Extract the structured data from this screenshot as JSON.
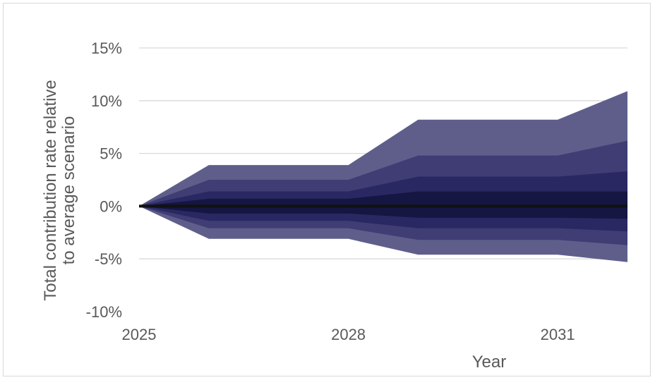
{
  "chart_data": {
    "type": "area",
    "title": "",
    "xlabel": "Year",
    "ylabel_lines": [
      "Total contribution rate relative",
      "to average scenario"
    ],
    "x": [
      2025,
      2026,
      2027,
      2028,
      2029,
      2030,
      2031,
      2032
    ],
    "x_ticks": [
      2025,
      2028,
      2031
    ],
    "x_tick_labels": [
      "2025",
      "2028",
      "2031"
    ],
    "ylim": [
      -10,
      15
    ],
    "y_ticks": [
      -10,
      -5,
      0,
      5,
      10,
      15
    ],
    "y_tick_labels": [
      "-10%",
      "-5%",
      "0%",
      "5%",
      "10%",
      "15%"
    ],
    "grid": true,
    "bands": [
      {
        "upper": [
          0,
          3.9,
          3.9,
          3.9,
          8.2,
          8.2,
          8.2,
          10.9
        ],
        "lower": [
          0,
          -3.1,
          -3.1,
          -3.1,
          -4.6,
          -4.6,
          -4.6,
          -5.3
        ],
        "color": "#5f5e8b"
      },
      {
        "upper": [
          0,
          2.5,
          2.5,
          2.5,
          4.8,
          4.8,
          4.8,
          6.2
        ],
        "lower": [
          0,
          -2.1,
          -2.1,
          -2.1,
          -3.2,
          -3.2,
          -3.2,
          -3.7
        ],
        "color": "#3f3d74"
      },
      {
        "upper": [
          0,
          1.4,
          1.4,
          1.4,
          2.8,
          2.8,
          2.8,
          3.3
        ],
        "lower": [
          0,
          -1.4,
          -1.4,
          -1.4,
          -2.1,
          -2.1,
          -2.1,
          -2.4
        ],
        "color": "#2a2863"
      },
      {
        "upper": [
          0,
          0.7,
          0.7,
          0.7,
          1.4,
          1.4,
          1.4,
          1.4
        ],
        "lower": [
          0,
          -0.7,
          -0.7,
          -0.7,
          -1.1,
          -1.1,
          -1.1,
          -1.2
        ],
        "color": "#151642"
      }
    ],
    "median": {
      "values": [
        0,
        0,
        0,
        0,
        0,
        0,
        0,
        0
      ],
      "color": "#111111"
    },
    "gridline_color": "#d9d9d9"
  }
}
